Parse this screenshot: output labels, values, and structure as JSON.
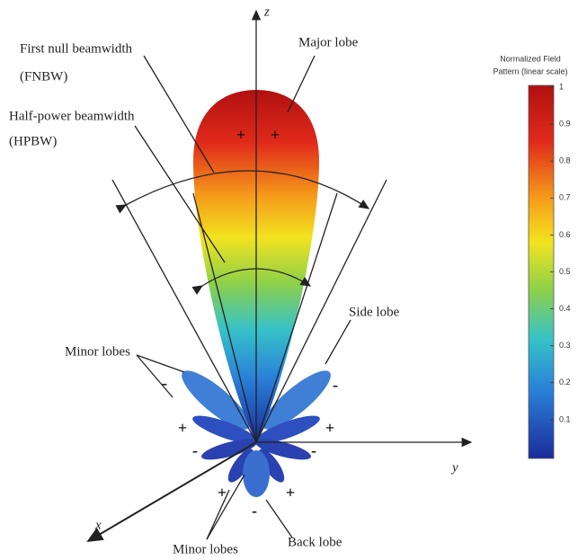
{
  "labels": {
    "z": "z",
    "y": "y",
    "x": "x",
    "fnbw_1": "First null beamwidth",
    "fnbw_2": "(FNBW)",
    "hpbw_1": "Half-power beamwidth",
    "hpbw_2": "(HPBW)",
    "major": "Major lobe",
    "side": "Side lobe",
    "minor_left": "Minor lobes",
    "minor_bottom": "Minor lobes",
    "back": "Back lobe"
  },
  "signs": [
    "+",
    "+",
    "-",
    "-",
    "+",
    "+",
    "-",
    "-",
    "+",
    "+",
    "-"
  ],
  "colorbar": {
    "title_1": "Normalized Field",
    "title_2": "Pattern (linear scale)",
    "ticks": [
      1,
      0.9,
      0.8,
      0.7,
      0.6,
      0.5,
      0.4,
      0.3,
      0.2,
      0.1
    ]
  }
}
